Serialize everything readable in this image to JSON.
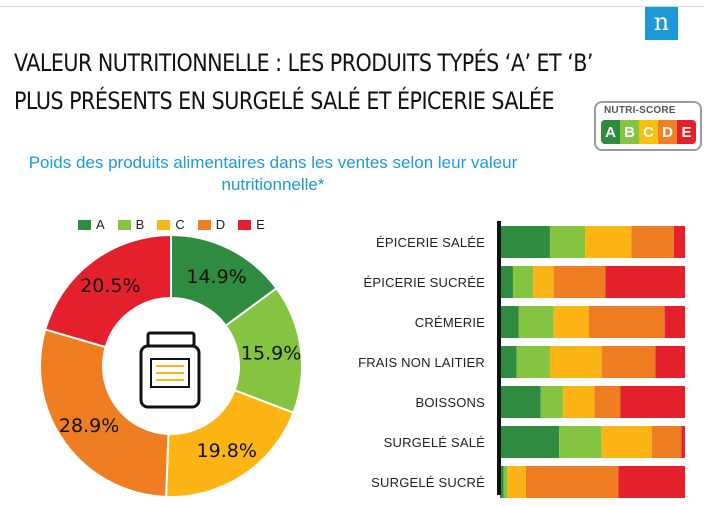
{
  "brand": {
    "logo_letter": "n"
  },
  "header": {
    "title_line1": "VALEUR NUTRITIONNELLE : LES PRODUITS TYPÉS ‘A’ ET ‘B’",
    "title_line2": "PLUS PRÉSENTS EN SURGELÉ SALÉ ET ÉPICERIE SALÉE"
  },
  "nutriscore": {
    "label": "NUTRI-SCORE",
    "letters": [
      "A",
      "B",
      "C",
      "D",
      "E"
    ],
    "colors": [
      "#2e8b3f",
      "#84c441",
      "#f9c10f",
      "#ef8025",
      "#e3202b"
    ]
  },
  "colors": {
    "A": "#2e8b3f",
    "B": "#84c441",
    "C": "#fdb515",
    "D": "#ef7d22",
    "E": "#e3202b",
    "accent": "#1d9ad6"
  },
  "chart_data": [
    {
      "type": "pie",
      "title": "Poids des produits alimentaires dans les ventes selon leur valeur nutritionnelle*",
      "legend": [
        "A",
        "B",
        "C",
        "D",
        "E"
      ],
      "legend_position": "top",
      "values": [
        14.9,
        15.9,
        19.8,
        28.9,
        20.5
      ],
      "value_labels": [
        "14.9%",
        "15.9%",
        "19.8%",
        "28.9%",
        "20.5%"
      ]
    },
    {
      "type": "bar",
      "stacked": true,
      "orientation": "horizontal",
      "categories": [
        "ÉPICERIE SALÉE",
        "ÉPICERIE SUCRÉE",
        "CRÉMERIE",
        "FRAIS NON LAITIER",
        "BOISSONS",
        "SURGELÉ SALÉ",
        "SURGELÉ SUCRÉ"
      ],
      "series": [
        {
          "name": "A",
          "values": [
            27,
            7,
            10,
            9,
            22,
            32,
            2
          ]
        },
        {
          "name": "B",
          "values": [
            19,
            11,
            19,
            18,
            12,
            23,
            2
          ]
        },
        {
          "name": "C",
          "values": [
            25,
            11,
            19,
            28,
            17,
            27,
            10
          ]
        },
        {
          "name": "D",
          "values": [
            23,
            28,
            41,
            29,
            14,
            16,
            50
          ]
        },
        {
          "name": "E",
          "values": [
            6,
            43,
            11,
            16,
            35,
            2,
            36
          ]
        }
      ]
    }
  ]
}
